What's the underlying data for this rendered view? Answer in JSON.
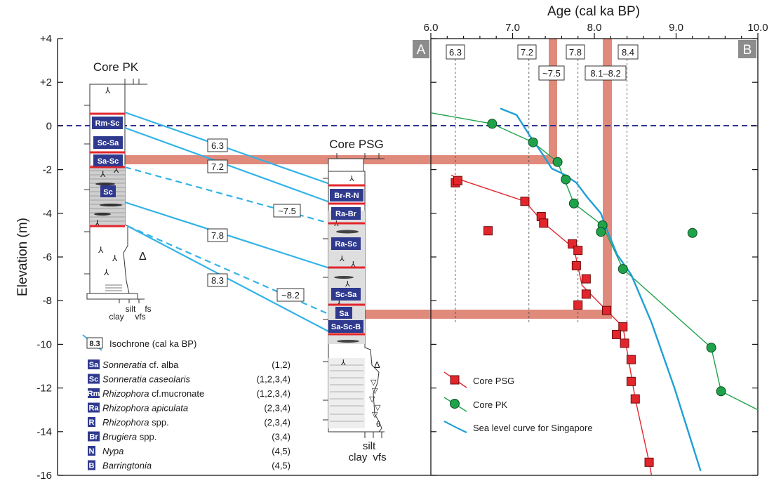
{
  "panel_labels": {
    "a": "A",
    "b": "B"
  },
  "colors": {
    "isochrone": "#33b3e8",
    "time_band": "#e08a7c",
    "core_psg": "#e2262c",
    "core_pk": "#1fa34a",
    "sea_level": "#1f9fd6",
    "datum": "#2e3592",
    "species_tag": "#2f3a8f"
  },
  "y_axis": {
    "label": "Elevation (m)",
    "ticks": [
      "+4",
      "+2",
      "0",
      "-2",
      "-4",
      "-6",
      "-8",
      "-10",
      "-12",
      "-14",
      "-16"
    ],
    "range": [
      -16,
      4
    ]
  },
  "top_axis": {
    "label": "Age (cal ka BP)",
    "ticks": [
      "6.0",
      "7.0",
      "8.0",
      "9.0",
      "10.0"
    ],
    "range": [
      6.0,
      10.0
    ]
  },
  "core_pk": {
    "title": "Core PK",
    "zones": [
      "Rm-Sc",
      "Sc-Sa",
      "Sa-Sc",
      "Sc"
    ],
    "grain_labels": {
      "clay": "clay",
      "silt": "silt",
      "vfs": "vfs",
      "fs": "fs"
    }
  },
  "core_psg": {
    "title": "Core PSG",
    "zones": [
      "Br-R-N",
      "Ra-Br",
      "Ra-Sc",
      "Sc-Sa",
      "Sa",
      "Sa-Sc-B"
    ],
    "grain_labels": {
      "clay": "clay",
      "silt": "silt",
      "vfs": "vfs"
    }
  },
  "isochrone_labels": [
    "6.3",
    "7.2",
    "~7.5",
    "7.8",
    "8.3",
    "~8.2"
  ],
  "age_markers": [
    "6.3",
    "7.2",
    "7.8",
    "8.4"
  ],
  "band_labels": [
    "~7.5",
    "8.1–8.2"
  ],
  "legend_a": {
    "isochrone_sample": "8.3",
    "isochrone_text": "Isochrone (cal ka BP)",
    "species": [
      {
        "code": "Sa",
        "name": "Sonneratia",
        "suffix": " cf. alba",
        "refs": "(1,2)"
      },
      {
        "code": "Sc",
        "name": "Sonneratia caseolaris",
        "suffix": "",
        "refs": "(1,2,3,4)"
      },
      {
        "code": "Rm",
        "name": "Rhizophora",
        "suffix": " cf.mucronate",
        "refs": "(1,2,3,4)"
      },
      {
        "code": "Ra",
        "name": "Rhizophora apiculata",
        "suffix": "",
        "refs": "(2,3,4)"
      },
      {
        "code": "R",
        "name": "Rhizophora",
        "suffix": " spp.",
        "refs": "(2,3,4)"
      },
      {
        "code": "Br",
        "name": "Brugiera",
        "suffix": " spp.",
        "refs": "(3,4)"
      },
      {
        "code": "N",
        "name": "Nypa",
        "suffix": "",
        "refs": "(4,5)"
      },
      {
        "code": "B",
        "name": "Barringtonia",
        "suffix": "",
        "refs": "(4,5)"
      }
    ]
  },
  "legend_b": {
    "items": [
      {
        "label": "Core PSG",
        "marker": "square"
      },
      {
        "label": "Core PK",
        "marker": "circle"
      },
      {
        "label": "Sea level curve for Singapore",
        "marker": "line"
      }
    ]
  },
  "chart_data": {
    "type": "scatter",
    "xlabel": "Age (cal ka BP)",
    "ylabel": "Elevation (m)",
    "xlim": [
      6.0,
      10.0
    ],
    "ylim": [
      -16,
      4
    ],
    "grid": false,
    "legend_position": "bottom-left",
    "series": [
      {
        "name": "Core PSG",
        "marker": "square",
        "points": [
          [
            6.3,
            -2.6
          ],
          [
            6.33,
            -2.5
          ],
          [
            7.15,
            -3.45
          ],
          [
            7.35,
            -4.15
          ],
          [
            7.38,
            -4.45
          ],
          [
            7.73,
            -5.4
          ],
          [
            7.8,
            -5.7
          ],
          [
            7.78,
            -6.4
          ],
          [
            7.9,
            -7.0
          ],
          [
            7.9,
            -7.7
          ],
          [
            7.8,
            -8.2
          ],
          [
            8.15,
            -8.45
          ],
          [
            8.35,
            -9.2
          ],
          [
            8.27,
            -9.55
          ],
          [
            8.37,
            -9.95
          ],
          [
            8.45,
            -10.7
          ],
          [
            8.45,
            -11.7
          ],
          [
            8.5,
            -12.5
          ],
          [
            8.67,
            -15.4
          ],
          [
            6.7,
            -4.8
          ]
        ],
        "trend": [
          [
            6.25,
            -2.25
          ],
          [
            6.35,
            -2.45
          ],
          [
            7.15,
            -3.45
          ],
          [
            7.38,
            -4.45
          ],
          [
            7.75,
            -5.6
          ],
          [
            7.85,
            -7.3
          ],
          [
            8.15,
            -8.45
          ],
          [
            8.35,
            -9.2
          ],
          [
            8.5,
            -12.5
          ],
          [
            8.67,
            -15.4
          ],
          [
            8.7,
            -16
          ]
        ]
      },
      {
        "name": "Core PK",
        "marker": "circle",
        "points": [
          [
            6.75,
            0.1
          ],
          [
            7.25,
            -0.75
          ],
          [
            7.55,
            -1.65
          ],
          [
            7.65,
            -2.45
          ],
          [
            7.75,
            -3.55
          ],
          [
            8.1,
            -4.55
          ],
          [
            8.08,
            -4.85
          ],
          [
            8.35,
            -6.55
          ],
          [
            9.43,
            -10.15
          ],
          [
            9.55,
            -12.15
          ],
          [
            9.2,
            -4.9
          ]
        ],
        "trend": [
          [
            6.0,
            0.6
          ],
          [
            6.75,
            0.1
          ],
          [
            7.25,
            -0.75
          ],
          [
            7.55,
            -1.65
          ],
          [
            7.75,
            -3.55
          ],
          [
            8.1,
            -4.55
          ],
          [
            8.35,
            -6.55
          ],
          [
            9.43,
            -10.15
          ],
          [
            9.55,
            -12.15
          ],
          [
            10.0,
            -13.0
          ]
        ]
      },
      {
        "name": "Sea level curve for Singapore",
        "marker": "line",
        "curve": [
          [
            6.85,
            0.8
          ],
          [
            7.05,
            0.5
          ],
          [
            7.22,
            -0.5
          ],
          [
            7.35,
            -1.2
          ],
          [
            7.48,
            -1.95
          ],
          [
            7.62,
            -2.2
          ],
          [
            7.78,
            -2.6
          ],
          [
            7.92,
            -3.3
          ],
          [
            8.08,
            -4.0
          ],
          [
            8.18,
            -5.0
          ],
          [
            8.28,
            -5.9
          ],
          [
            8.45,
            -6.8
          ],
          [
            8.7,
            -9.0
          ],
          [
            8.98,
            -12.0
          ],
          [
            9.3,
            -15.8
          ]
        ]
      }
    ],
    "reference_ages": [
      6.3,
      7.2,
      7.8,
      8.4
    ],
    "time_bands": [
      {
        "label": "~7.5",
        "age": 7.5,
        "elevation": -1.5
      },
      {
        "label": "8.1–8.2",
        "age": 8.2,
        "elevation": -8.6
      }
    ],
    "datum_elevation": 0
  }
}
